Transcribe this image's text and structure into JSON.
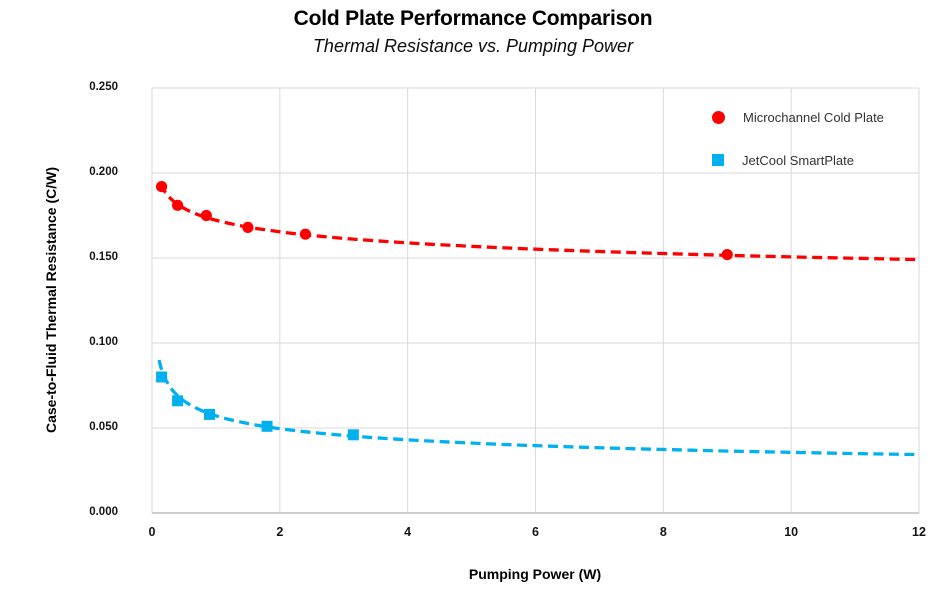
{
  "chart_data": {
    "type": "scatter",
    "title": "Cold Plate Performance Comparison",
    "subtitle": "Thermal Resistance vs. Pumping Power",
    "xlabel": "Pumping Power (W)",
    "ylabel": "Case-to-Fluid Thermal Resistance (C/W)",
    "xlim": [
      0,
      12
    ],
    "ylim": [
      0,
      0.25
    ],
    "xticks": {
      "values": [
        0,
        2,
        4,
        6,
        8,
        10,
        12
      ],
      "labels": [
        "0",
        "2",
        "4",
        "6",
        "8",
        "10",
        "12"
      ]
    },
    "yticks": {
      "values": [
        0,
        0.05,
        0.1,
        0.15,
        0.2,
        0.25
      ],
      "labels": [
        "0.000",
        "0.050",
        "0.100",
        "0.150",
        "0.200",
        "0.250"
      ]
    },
    "grid": true,
    "gridline_color": "#D9D9D9",
    "axis_line_color": "#BFBFBF",
    "legend_position": "top-right-inside",
    "series": [
      {
        "name": "Microchannel Cold Plate",
        "color": "#FF0000",
        "marker": "circle",
        "line_style": "dashed",
        "points": [
          [
            0.15,
            0.192
          ],
          [
            0.4,
            0.181
          ],
          [
            0.85,
            0.175
          ],
          [
            1.5,
            0.168
          ],
          [
            2.4,
            0.164
          ],
          [
            9.0,
            0.152
          ]
        ],
        "trendline": {
          "type": "power",
          "coefficient": 0.1722,
          "exponent": -0.058,
          "x_range": [
            0.135,
            12
          ]
        }
      },
      {
        "name": "JetCool SmartPlate",
        "color": "#00B0F0",
        "marker": "square",
        "line_style": "dashed",
        "points": [
          [
            0.15,
            0.08
          ],
          [
            0.4,
            0.066
          ],
          [
            0.9,
            0.058
          ],
          [
            1.8,
            0.051
          ],
          [
            3.15,
            0.046
          ]
        ],
        "trendline": {
          "type": "power",
          "coefficient": 0.0572,
          "exponent": -0.205,
          "x_range": [
            0.11,
            12
          ]
        }
      }
    ]
  }
}
